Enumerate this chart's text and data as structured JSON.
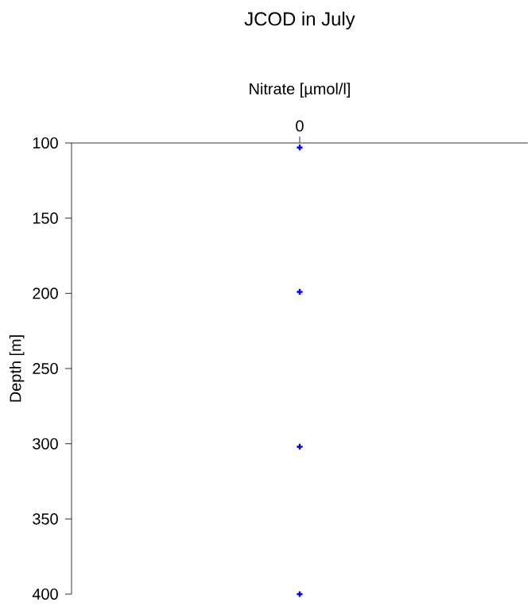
{
  "chart_data": {
    "type": "scatter",
    "title": "JCOD in July",
    "xlabel": "Nitrate [µmol/l]",
    "ylabel": "Depth [m]",
    "categories": [
      "0"
    ],
    "series": [
      {
        "color": "#0000ff",
        "x": [
          "0",
          "0",
          "0",
          "0"
        ],
        "values": [
          103,
          199,
          302,
          400
        ]
      }
    ],
    "ylim": [
      400,
      100
    ],
    "yticks": [
      100,
      150,
      200,
      250,
      300,
      350,
      400
    ],
    "marker": "cross"
  }
}
